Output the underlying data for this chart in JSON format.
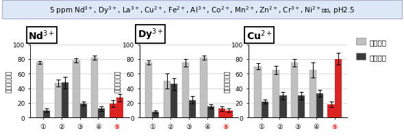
{
  "title": "5 ppm Nd$^{3+}$, Dy$^{3+}$, La$^{3+}$, Cu$^{2+}$, Fe$^{2+}$, Al$^{3+}$, Co$^{2+}$, Mn$^{2+}$, Zn$^{2+}$, Cr$^{3+}$, Ni$^{2+}$添加, pH2.5",
  "ylabel": "回収率（％）",
  "legend_labels": [
    "培地上清",
    "細胞画分"
  ],
  "subplots": [
    {
      "label": "Nd$^{3+}$",
      "supernatant": [
        75,
        47,
        78,
        82,
        19
      ],
      "supernatant_err": [
        2,
        5,
        3,
        3,
        5
      ],
      "cell": [
        10,
        48,
        19,
        12,
        27
      ],
      "cell_err": [
        2,
        8,
        3,
        3,
        5
      ]
    },
    {
      "label": "Dy$^{3+}$",
      "supernatant": [
        75,
        50,
        75,
        82,
        12
      ],
      "supernatant_err": [
        3,
        10,
        5,
        3,
        3
      ],
      "cell": [
        8,
        46,
        24,
        15,
        10
      ],
      "cell_err": [
        2,
        8,
        5,
        3,
        2
      ]
    },
    {
      "label": "Cu$^{2+}$",
      "supernatant": [
        70,
        65,
        75,
        65,
        18
      ],
      "supernatant_err": [
        4,
        6,
        5,
        10,
        4
      ],
      "cell": [
        22,
        30,
        30,
        33,
        80
      ],
      "cell_err": [
        3,
        5,
        5,
        5,
        8
      ]
    }
  ],
  "x_labels": [
    "①",
    "②",
    "③",
    "④",
    "⑤"
  ],
  "highlight_index": 4,
  "color_supernatant": "#c0c0c0",
  "color_cell": "#3a3a3a",
  "color_highlight": "#dd2222",
  "ylim": [
    0,
    100
  ],
  "yticks": [
    0,
    20,
    40,
    60,
    80,
    100
  ],
  "bar_width": 0.38,
  "title_fontsize": 7.5,
  "sublabel_fontsize": 10,
  "tick_fontsize": 6.5,
  "ylabel_fontsize": 6.5,
  "legend_fontsize": 7.5,
  "title_bg": "#dce8f5",
  "title_border": "#aaaacc"
}
